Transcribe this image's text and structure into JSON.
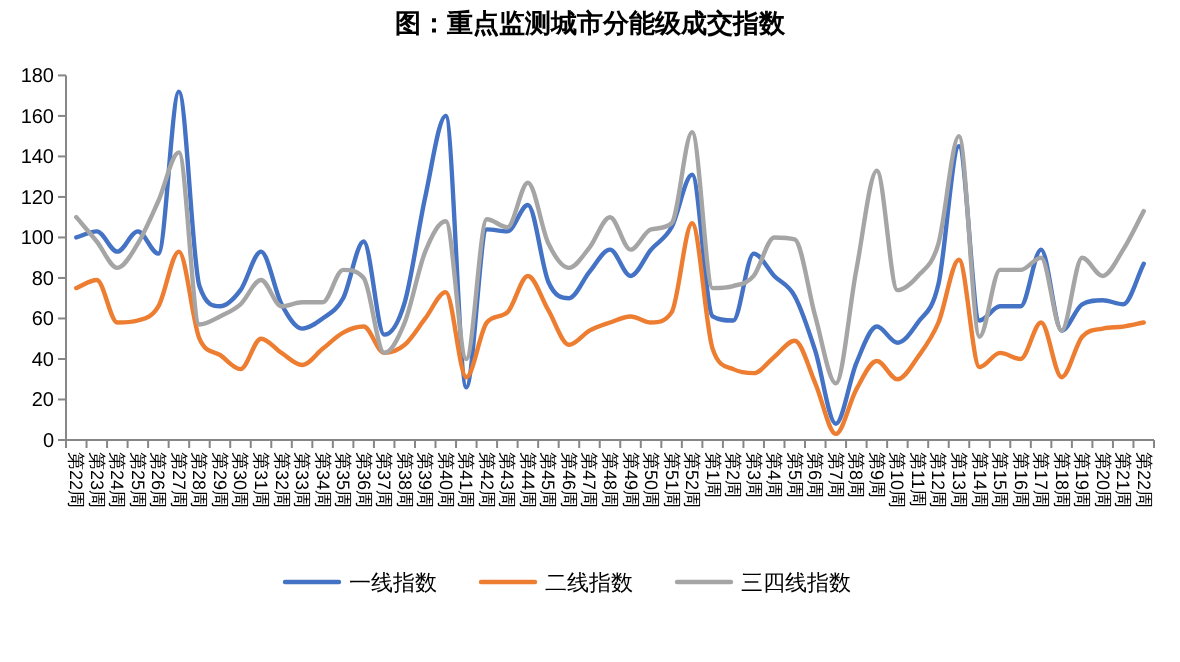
{
  "chart_data": {
    "type": "line",
    "title": "图：重点监测城市分能级成交指数",
    "categories": [
      "第22周",
      "第23周",
      "第24周",
      "第25周",
      "第26周",
      "第27周",
      "第28周",
      "第29周",
      "第30周",
      "第31周",
      "第32周",
      "第33周",
      "第34周",
      "第35周",
      "第36周",
      "第37周",
      "第38周",
      "第39周",
      "第40周",
      "第41周",
      "第42周",
      "第43周",
      "第44周",
      "第45周",
      "第46周",
      "第47周",
      "第48周",
      "第49周",
      "第50周",
      "第51周",
      "第52周",
      "第1周",
      "第2周",
      "第3周",
      "第4周",
      "第5周",
      "第6周",
      "第7周",
      "第8周",
      "第9周",
      "第10周",
      "第11周",
      "第12周",
      "第13周",
      "第14周",
      "第15周",
      "第16周",
      "第17周",
      "第18周",
      "第19周",
      "第20周",
      "第21周",
      "第22周"
    ],
    "series": [
      {
        "name": "一线指数",
        "color": "#4472c4",
        "values": [
          100,
          103,
          93,
          103,
          92,
          172,
          76,
          66,
          74,
          93,
          67,
          55,
          60,
          70,
          98,
          52,
          68,
          120,
          160,
          26,
          104,
          103,
          116,
          78,
          70,
          83,
          94,
          81,
          94,
          105,
          131,
          61,
          59,
          92,
          81,
          71,
          44,
          8,
          38,
          56,
          48,
          58,
          77,
          145,
          59,
          66,
          66,
          94,
          54,
          67,
          69,
          67,
          87
        ]
      },
      {
        "name": "二线指数",
        "color": "#ed7d31",
        "values": [
          75,
          79,
          58,
          59,
          66,
          93,
          50,
          42,
          35,
          50,
          43,
          37,
          45,
          53,
          56,
          43,
          47,
          60,
          73,
          31,
          58,
          63,
          81,
          64,
          47,
          54,
          58,
          61,
          58,
          63,
          107,
          45,
          35,
          33,
          41,
          49,
          28,
          3,
          25,
          39,
          30,
          41,
          58,
          89,
          36,
          43,
          40,
          58,
          31,
          51,
          55,
          56,
          58
        ]
      },
      {
        "name": "三四线指数",
        "color": "#a5a5a5",
        "values": [
          110,
          98,
          85,
          97,
          118,
          142,
          57,
          61,
          67,
          79,
          66,
          68,
          68,
          84,
          80,
          43,
          58,
          93,
          108,
          40,
          109,
          105,
          127,
          97,
          85,
          95,
          110,
          94,
          104,
          107,
          152,
          75,
          76,
          81,
          100,
          99,
          61,
          28,
          84,
          133,
          74,
          81,
          97,
          150,
          51,
          84,
          84,
          90,
          54,
          90,
          81,
          94,
          113
        ]
      }
    ],
    "ylim": [
      0,
      180
    ],
    "yticks": [
      0,
      20,
      40,
      60,
      80,
      100,
      120,
      140,
      160,
      180
    ],
    "legend": "bottom"
  }
}
